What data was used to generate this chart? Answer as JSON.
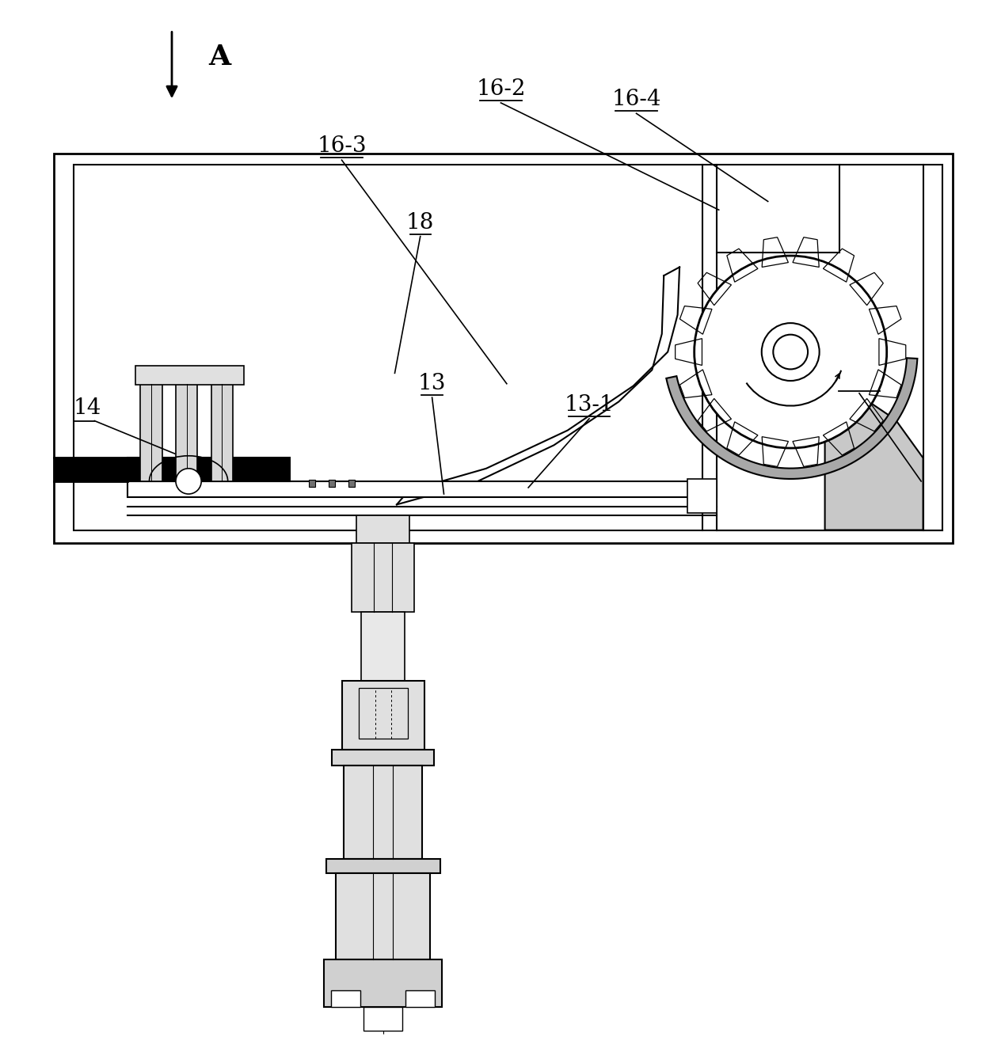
{
  "bg_color": "#ffffff",
  "lc": "#000000",
  "gray_light": "#c8c8c8",
  "gray_med": "#a8a8a8",
  "gray_dark": "#808080",
  "label_fontsize": 20,
  "arrow_fontsize": 26
}
